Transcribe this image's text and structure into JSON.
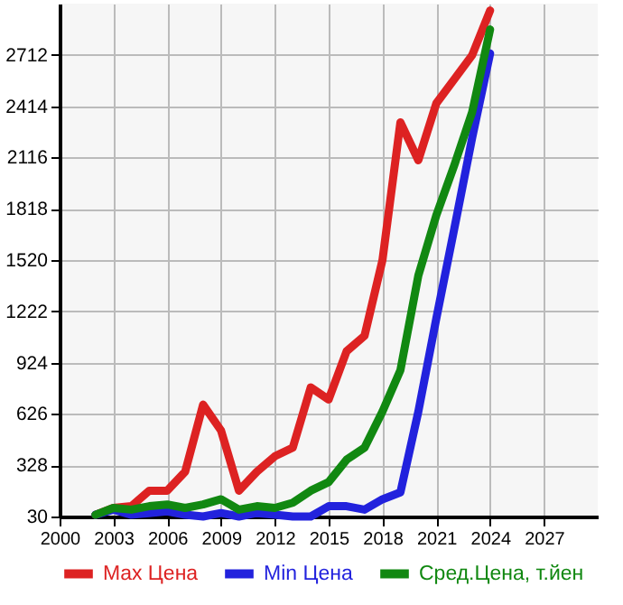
{
  "chart_data": {
    "type": "line",
    "x": [
      2002,
      2003,
      2004,
      2005,
      2006,
      2007,
      2008,
      2009,
      2010,
      2011,
      2012,
      2013,
      2014,
      2015,
      2016,
      2017,
      2018,
      2019,
      2020,
      2021,
      2022,
      2023,
      2024
    ],
    "series": [
      {
        "name": "Max Цена",
        "color": "#dd2222",
        "values": [
          40,
          80,
          90,
          180,
          180,
          290,
          680,
          530,
          180,
          290,
          380,
          430,
          780,
          710,
          990,
          1080,
          1520,
          2320,
          2100,
          2430,
          2570,
          2710,
          2970
        ]
      },
      {
        "name": "Min Цена",
        "color": "#2222dd",
        "values": [
          40,
          70,
          40,
          50,
          60,
          40,
          30,
          50,
          30,
          50,
          40,
          30,
          30,
          90,
          90,
          70,
          130,
          170,
          640,
          1180,
          1700,
          2230,
          2720
        ]
      },
      {
        "name": "Сред.Цена, т.йен",
        "color": "#118811",
        "values": [
          40,
          80,
          70,
          90,
          100,
          80,
          100,
          130,
          70,
          90,
          80,
          110,
          180,
          230,
          360,
          430,
          640,
          880,
          1430,
          1780,
          2070,
          2380,
          2860
        ]
      }
    ],
    "xlim": [
      2000,
      2030
    ],
    "xticks": [
      2000,
      2003,
      2006,
      2009,
      2012,
      2015,
      2018,
      2021,
      2024,
      2027
    ],
    "ylim": [
      30,
      3010
    ],
    "yticks": [
      30,
      328,
      626,
      924,
      1222,
      1520,
      1818,
      2116,
      2414,
      2712
    ],
    "grid": true,
    "legend": "bottom",
    "line_style": "solid"
  }
}
